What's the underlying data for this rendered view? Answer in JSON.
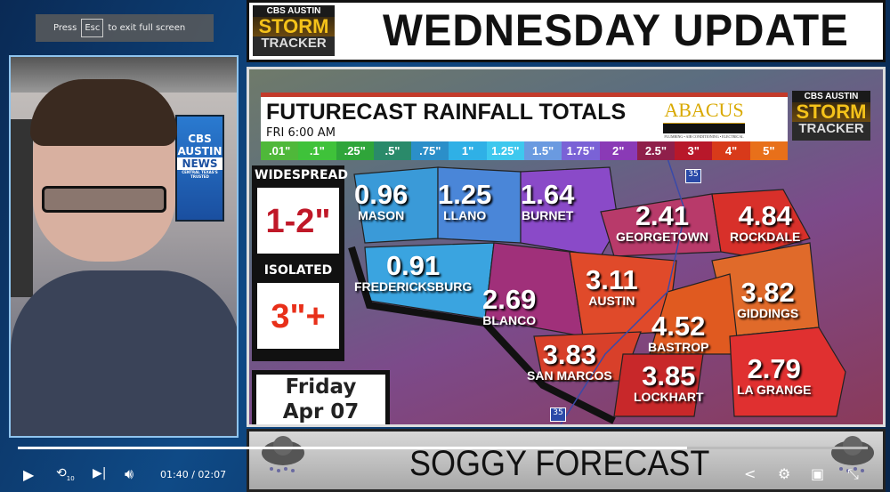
{
  "header": {
    "title": "WEDNESDAY UPDATE",
    "logo": {
      "network": "CBS AUSTIN",
      "line1": "STORM",
      "line2": "TRACKER"
    }
  },
  "fullscreen_notice": {
    "press": "Press",
    "key": "Esc",
    "rest": "to exit full screen"
  },
  "webcam": {
    "background_logo": {
      "line1": "CBS",
      "line2": "AUSTIN",
      "line3": "NEWS",
      "tagline": "CENTRAL TEXAS'S TRUSTED"
    }
  },
  "map": {
    "title": "FUTURECAST RAINFALL TOTALS",
    "time": "FRI  6:00 AM",
    "sponsor": "ABACUS",
    "sponsor_tagline": "PLUMBING • AIR CONDITIONING • ELECTRICAL",
    "legend": [
      {
        "label": ".01\"",
        "color": "#4fb83a"
      },
      {
        "label": ".1\"",
        "color": "#3fc23a"
      },
      {
        "label": ".25\"",
        "color": "#2fa53a"
      },
      {
        "label": ".5\"",
        "color": "#2a8a6a"
      },
      {
        "label": ".75\"",
        "color": "#2b8fc9"
      },
      {
        "label": "1\"",
        "color": "#2fb0e6"
      },
      {
        "label": "1.25\"",
        "color": "#3ec8ee"
      },
      {
        "label": "1.5\"",
        "color": "#6a9ae0"
      },
      {
        "label": "1.75\"",
        "color": "#7a62d6"
      },
      {
        "label": "2\"",
        "color": "#8a3ab6"
      },
      {
        "label": "2.5\"",
        "color": "#8f1f4a"
      },
      {
        "label": "3\"",
        "color": "#b8182a"
      },
      {
        "label": "4\"",
        "color": "#d83a1a"
      },
      {
        "label": "5\"",
        "color": "#e8701a"
      }
    ],
    "widespread": {
      "label": "WIDESPREAD",
      "value": "1-2\""
    },
    "isolated": {
      "label": "ISOLATED",
      "value": "3\"+"
    },
    "date": {
      "day": "Friday",
      "date": "Apr 07"
    },
    "highway": "35",
    "counties": [
      {
        "name": "MASON",
        "value": "0.96"
      },
      {
        "name": "LLANO",
        "value": "1.25"
      },
      {
        "name": "BURNET",
        "value": "1.64"
      },
      {
        "name": "GEORGETOWN",
        "value": "2.41"
      },
      {
        "name": "ROCKDALE",
        "value": "4.84"
      },
      {
        "name": "FREDERICKSBURG",
        "value": "0.91"
      },
      {
        "name": "BLANCO",
        "value": "2.69"
      },
      {
        "name": "AUSTIN",
        "value": "3.11"
      },
      {
        "name": "GIDDINGS",
        "value": "3.82"
      },
      {
        "name": "BASTROP",
        "value": "4.52"
      },
      {
        "name": "SAN MARCOS",
        "value": "3.83"
      },
      {
        "name": "LOCKHART",
        "value": "3.85"
      },
      {
        "name": "LA GRANGE",
        "value": "2.79"
      }
    ]
  },
  "banner": {
    "title": "SOGGY FORECAST"
  },
  "player": {
    "current_time": "01:40",
    "separator": "/",
    "duration": "02:07",
    "progress_percent": 78.7,
    "replay_seconds": "10",
    "icons": [
      "play-icon",
      "replay-10-icon",
      "next-icon",
      "volume-icon",
      "share-icon",
      "gear-icon",
      "picture-in-picture-icon",
      "exit-fullscreen-icon"
    ]
  }
}
